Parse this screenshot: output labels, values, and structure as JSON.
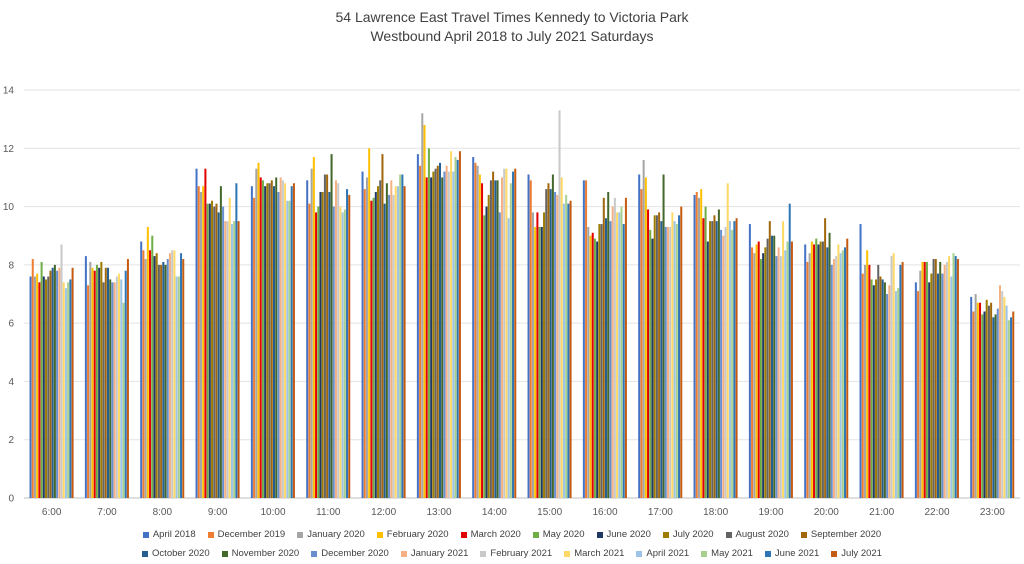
{
  "chart_data": {
    "type": "bar",
    "title": "54 Lawrence East Travel Times Kennedy to Victoria Park",
    "subtitle": "Westbound April 2018 to July 2021 Saturdays",
    "xlabel": "",
    "ylabel": "",
    "ylim": [
      0,
      14
    ],
    "yticks": [
      "0",
      "2",
      "4",
      "6",
      "8",
      "10",
      "12",
      "14"
    ],
    "grid": true,
    "legend_position": "bottom",
    "categories": [
      "6:00",
      "7:00",
      "8:00",
      "9:00",
      "10:00",
      "11:00",
      "12:00",
      "13:00",
      "14:00",
      "15:00",
      "16:00",
      "17:00",
      "18:00",
      "19:00",
      "20:00",
      "21:00",
      "22:00",
      "23:00"
    ],
    "series": [
      {
        "name": "April 2018",
        "color": "#4472C4",
        "values": [
          7.6,
          8.3,
          8.8,
          11.3,
          10.7,
          10.9,
          11.2,
          11.8,
          11.7,
          11.1,
          10.9,
          11.1,
          10.4,
          9.4,
          8.7,
          9.4,
          7.4,
          6.9
        ]
      },
      {
        "name": "December 2019",
        "color": "#ED7D31",
        "values": [
          8.2,
          7.3,
          8.5,
          10.7,
          10.3,
          10.1,
          10.6,
          11.4,
          11.5,
          10.9,
          10.9,
          10.6,
          10.5,
          8.6,
          8.1,
          7.7,
          7.1,
          6.4
        ]
      },
      {
        "name": "January 2020",
        "color": "#A5A5A5",
        "values": [
          7.6,
          8.1,
          8.2,
          10.5,
          11.3,
          11.3,
          11.0,
          13.2,
          11.4,
          9.8,
          9.3,
          11.6,
          10.3,
          8.4,
          8.4,
          8.0,
          7.8,
          7.0
        ]
      },
      {
        "name": "February 2020",
        "color": "#FFC000",
        "values": [
          7.7,
          7.9,
          9.3,
          10.7,
          11.5,
          11.7,
          12.0,
          12.8,
          11.1,
          9.3,
          9.0,
          11.0,
          10.6,
          8.7,
          8.8,
          8.5,
          8.1,
          6.7
        ]
      },
      {
        "name": "March 2020",
        "color": "#E00000",
        "values": [
          7.4,
          7.8,
          8.5,
          11.3,
          11.0,
          9.8,
          10.2,
          11.0,
          10.8,
          9.8,
          9.1,
          9.9,
          9.6,
          8.8,
          8.7,
          8.0,
          8.1,
          6.7
        ]
      },
      {
        "name": "May 2020",
        "color": "#70AD47",
        "values": [
          8.1,
          8.0,
          9.0,
          10.1,
          10.9,
          10.0,
          10.3,
          12.0,
          9.7,
          9.3,
          8.9,
          9.2,
          10.0,
          8.2,
          8.9,
          7.5,
          8.1,
          6.3
        ]
      },
      {
        "name": "June 2020",
        "color": "#1F3864",
        "values": [
          7.6,
          7.9,
          8.3,
          10.1,
          10.7,
          10.5,
          10.5,
          11.0,
          10.0,
          9.3,
          8.8,
          8.9,
          8.8,
          8.4,
          8.7,
          7.3,
          7.4,
          6.4
        ]
      },
      {
        "name": "July 2020",
        "color": "#9E7C00",
        "values": [
          7.5,
          8.1,
          8.4,
          10.2,
          10.8,
          10.5,
          10.7,
          11.2,
          10.4,
          9.8,
          9.4,
          9.7,
          9.5,
          8.6,
          8.8,
          7.5,
          7.7,
          6.8
        ]
      },
      {
        "name": "August 2020",
        "color": "#636363",
        "values": [
          7.6,
          7.4,
          8.0,
          10.0,
          10.8,
          11.1,
          10.9,
          11.3,
          10.9,
          10.6,
          9.4,
          9.7,
          9.5,
          8.9,
          8.8,
          8.0,
          8.2,
          6.6
        ]
      },
      {
        "name": "September 2020",
        "color": "#A0670C",
        "values": [
          7.8,
          7.9,
          8.0,
          10.1,
          10.9,
          11.1,
          11.8,
          11.4,
          11.2,
          10.8,
          10.3,
          9.8,
          9.7,
          9.5,
          9.6,
          7.6,
          8.2,
          6.7
        ]
      },
      {
        "name": "October 2020",
        "color": "#255E91",
        "values": [
          7.9,
          7.9,
          8.1,
          9.8,
          10.7,
          10.5,
          10.1,
          11.5,
          10.9,
          10.6,
          9.6,
          9.5,
          9.5,
          9.0,
          8.6,
          7.5,
          7.7,
          6.2
        ]
      },
      {
        "name": "November 2020",
        "color": "#43682B",
        "values": [
          8.0,
          7.5,
          8.0,
          10.7,
          11.0,
          11.8,
          10.8,
          11.0,
          10.9,
          11.1,
          10.5,
          11.1,
          9.9,
          9.0,
          9.1,
          7.4,
          8.1,
          6.3
        ]
      },
      {
        "name": "December 2020",
        "color": "#698ED0",
        "values": [
          7.8,
          7.4,
          8.2,
          10.0,
          10.5,
          10.0,
          10.4,
          11.2,
          9.8,
          10.5,
          9.5,
          9.3,
          9.2,
          8.3,
          8.0,
          7.0,
          7.7,
          6.5
        ]
      },
      {
        "name": "January 2021",
        "color": "#F4B183",
        "values": [
          7.9,
          7.4,
          8.4,
          9.5,
          11.0,
          10.9,
          10.9,
          11.4,
          11.0,
          10.4,
          10.0,
          9.3,
          9.0,
          8.6,
          8.2,
          7.3,
          8.0,
          7.3
        ]
      },
      {
        "name": "February 2021",
        "color": "#C9C9C9",
        "values": [
          8.7,
          7.6,
          8.5,
          9.5,
          10.9,
          10.8,
          10.4,
          11.2,
          11.3,
          13.3,
          10.3,
          9.3,
          9.3,
          8.3,
          8.3,
          8.3,
          8.1,
          7.1
        ]
      },
      {
        "name": "March 2021",
        "color": "#FFD966",
        "values": [
          7.4,
          7.7,
          8.5,
          10.3,
          10.8,
          10.0,
          10.7,
          11.9,
          11.3,
          11.0,
          9.8,
          9.8,
          10.8,
          9.5,
          8.7,
          8.4,
          8.3,
          6.9
        ]
      },
      {
        "name": "April 2021",
        "color": "#9DC3E6",
        "values": [
          7.2,
          7.5,
          7.6,
          9.4,
          10.2,
          9.8,
          10.7,
          11.2,
          9.6,
          10.1,
          9.8,
          9.5,
          9.5,
          8.5,
          8.4,
          7.1,
          7.6,
          6.6
        ]
      },
      {
        "name": "May 2021",
        "color": "#A9D18E",
        "values": [
          7.4,
          6.7,
          7.6,
          9.5,
          10.2,
          9.9,
          11.1,
          11.7,
          10.8,
          10.4,
          10.0,
          9.4,
          9.2,
          8.8,
          8.5,
          7.2,
          8.4,
          6.1
        ]
      },
      {
        "name": "June 2021",
        "color": "#2E75B6",
        "values": [
          7.5,
          7.8,
          8.4,
          10.8,
          10.7,
          10.6,
          11.1,
          11.6,
          11.2,
          10.1,
          9.4,
          9.7,
          9.5,
          10.1,
          8.6,
          8.0,
          8.3,
          6.2
        ]
      },
      {
        "name": "July 2021",
        "color": "#C55A11",
        "values": [
          7.9,
          8.2,
          8.2,
          9.5,
          10.8,
          10.4,
          10.7,
          11.9,
          11.3,
          10.2,
          10.3,
          10.0,
          9.6,
          8.8,
          8.9,
          8.1,
          8.2,
          6.4
        ]
      }
    ]
  }
}
